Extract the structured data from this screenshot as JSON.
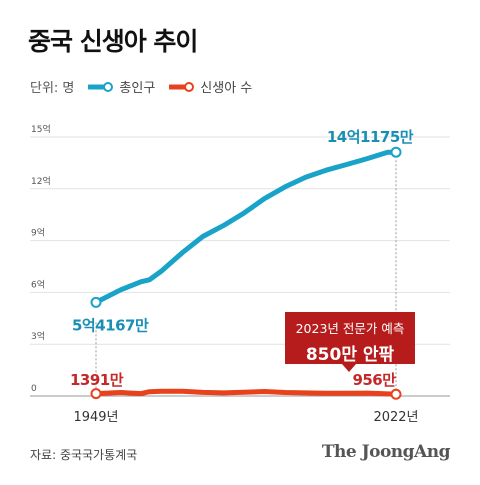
{
  "chart_data": {
    "type": "line",
    "title": "중국 신생아 추이",
    "unit_label": "단위: 명",
    "x": [
      1949,
      1955,
      1960,
      1962,
      1965,
      1970,
      1975,
      1980,
      1985,
      1990,
      1995,
      2000,
      2005,
      2010,
      2015,
      2020,
      2022
    ],
    "x_tick_labels": [
      "1949년",
      "2022년"
    ],
    "y_tick_labels": [
      "0",
      "3억",
      "6억",
      "9억",
      "12억",
      "15억"
    ],
    "ylim": [
      0,
      15
    ],
    "series": [
      {
        "name": "총인구",
        "color": "#1aa3c8",
        "values": [
          5.42,
          6.15,
          6.62,
          6.73,
          7.25,
          8.3,
          9.24,
          9.87,
          10.59,
          11.43,
          12.11,
          12.67,
          13.08,
          13.41,
          13.75,
          14.12,
          14.12
        ],
        "start_label": "5억4167만",
        "end_label": "14억1175만"
      },
      {
        "name": "신생아 수",
        "color": "#e8411c",
        "values": [
          0.14,
          0.2,
          0.14,
          0.25,
          0.27,
          0.27,
          0.21,
          0.18,
          0.22,
          0.26,
          0.2,
          0.18,
          0.16,
          0.16,
          0.17,
          0.12,
          0.1
        ],
        "start_label": "1391만",
        "end_label": "956만"
      }
    ],
    "annotation": {
      "line1": "2023년 전문가 예측",
      "line2": "850만 안팎"
    },
    "grid": true
  },
  "footer": {
    "source": "자료: 중국국가통계국",
    "logo": "The JoongAng"
  },
  "colors": {
    "total": "#1aa3c8",
    "births": "#e8411c",
    "callout": "#b71c1c"
  }
}
